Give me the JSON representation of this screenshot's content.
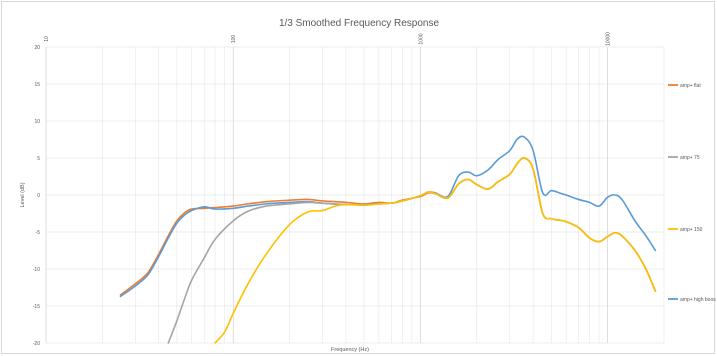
{
  "chart_data": {
    "type": "line",
    "title": "1/3 Smoothed Frequency Response",
    "xlabel": "Frequency (Hz)",
    "ylabel": "Level (dB)",
    "x_scale": "log",
    "xlim": [
      10,
      20000
    ],
    "ylim": [
      -20,
      20
    ],
    "x_ticks": [
      "10",
      "100",
      "1000",
      "10000"
    ],
    "y_ticks": [
      "20",
      "15",
      "10",
      "5",
      "0",
      "-5",
      "-10",
      "-15",
      "-20"
    ],
    "grid": true,
    "legend_position": "right",
    "series": [
      {
        "name": "amp+ flat",
        "color": "#ed7d31",
        "x": [
          25,
          30,
          35,
          40,
          45,
          50,
          55,
          60,
          70,
          80,
          100,
          120,
          150,
          200,
          250,
          300,
          400,
          500,
          600,
          700,
          800,
          1000,
          1100,
          1200,
          1400,
          1600,
          1800,
          2000,
          2300,
          2600,
          3000,
          3300,
          3600,
          4000,
          4500,
          5000,
          5500,
          6000,
          7000,
          8000,
          9000,
          10000,
          11000,
          12000,
          14000,
          16000,
          18000
        ],
        "y": [
          -13.5,
          -12,
          -10.5,
          -8,
          -5.5,
          -3.5,
          -2.4,
          -1.9,
          -1.8,
          -1.7,
          -1.5,
          -1.2,
          -0.9,
          -0.7,
          -0.6,
          -0.8,
          -1.0,
          -1.2,
          -1.0,
          -1.1,
          -0.7,
          -0.2,
          0.3,
          0.2,
          -0.4,
          1.5,
          2.1,
          1.4,
          0.8,
          1.8,
          2.8,
          4.3,
          5.0,
          3.5,
          -2.5,
          -3.2,
          -3.4,
          -3.6,
          -4.4,
          -5.8,
          -6.3,
          -5.6,
          -5.1,
          -5.6,
          -7.5,
          -10,
          -13
        ]
      },
      {
        "name": "amp+ 75",
        "color": "#a5a5a5",
        "x": [
          45,
          50,
          55,
          60,
          70,
          80,
          100,
          120,
          150,
          200,
          250,
          300,
          400,
          500,
          600,
          700,
          800,
          1000,
          1100,
          1200,
          1400,
          1600,
          1800,
          2000,
          2300,
          2600,
          3000,
          3300,
          3600,
          4000,
          4500,
          5000,
          5500,
          6000,
          7000,
          8000,
          9000,
          10000,
          11000,
          12000,
          14000,
          16000,
          18000
        ],
        "y": [
          -20,
          -17,
          -14,
          -11.5,
          -8.5,
          -6,
          -3.5,
          -2.2,
          -1.5,
          -1.2,
          -1.0,
          -1.1,
          -1.3,
          -1.3,
          -1.2,
          -1.1,
          -0.8,
          -0.1,
          0.4,
          0.2,
          -0.4,
          1.5,
          2.1,
          1.4,
          0.8,
          1.8,
          2.8,
          4.3,
          5.0,
          3.5,
          -2.5,
          -3.2,
          -3.4,
          -3.6,
          -4.4,
          -5.8,
          -6.3,
          -5.6,
          -5.1,
          -5.6,
          -7.5,
          -10,
          -13
        ]
      },
      {
        "name": "amp+ 150",
        "color": "#ffc000",
        "x": [
          80,
          90,
          100,
          120,
          150,
          200,
          250,
          300,
          350,
          400,
          500,
          600,
          700,
          800,
          1000,
          1100,
          1200,
          1400,
          1600,
          1800,
          2000,
          2300,
          2600,
          3000,
          3300,
          3600,
          4000,
          4500,
          5000,
          5500,
          6000,
          7000,
          8000,
          9000,
          10000,
          11000,
          12000,
          14000,
          16000,
          18000
        ],
        "y": [
          -20,
          -18.5,
          -16,
          -12,
          -8,
          -4,
          -2.3,
          -2.1,
          -1.5,
          -1.3,
          -1.4,
          -1.2,
          -1.1,
          -0.8,
          -0.1,
          0.4,
          0.2,
          -0.4,
          1.5,
          2.1,
          1.4,
          0.8,
          1.8,
          2.8,
          4.3,
          5.0,
          3.5,
          -2.5,
          -3.2,
          -3.4,
          -3.6,
          -4.4,
          -5.8,
          -6.3,
          -5.6,
          -5.1,
          -5.6,
          -7.5,
          -10,
          -13
        ]
      },
      {
        "name": "amp+ high boost",
        "color": "#5b9bd5",
        "x": [
          25,
          30,
          35,
          40,
          45,
          50,
          55,
          60,
          70,
          80,
          100,
          120,
          150,
          200,
          250,
          300,
          400,
          500,
          600,
          700,
          800,
          1000,
          1100,
          1200,
          1400,
          1600,
          1800,
          2000,
          2300,
          2600,
          3000,
          3300,
          3600,
          4000,
          4500,
          5000,
          5500,
          6000,
          7000,
          8000,
          9000,
          10000,
          11000,
          12000,
          14000,
          16000,
          18000
        ],
        "y": [
          -13.7,
          -12.3,
          -10.8,
          -8.3,
          -5.8,
          -3.8,
          -2.7,
          -2.1,
          -1.6,
          -1.9,
          -1.8,
          -1.5,
          -1.2,
          -1.0,
          -0.9,
          -1.1,
          -1.3,
          -1.3,
          -1.2,
          -1.1,
          -0.8,
          -0.1,
          0.4,
          0.3,
          -0.2,
          2.6,
          3.1,
          2.6,
          3.4,
          4.8,
          6.0,
          7.6,
          7.8,
          6.0,
          0.3,
          0.6,
          0.3,
          0.0,
          -0.6,
          -1.0,
          -1.5,
          -0.3,
          0.0,
          -0.7,
          -3.5,
          -5.5,
          -7.5
        ]
      }
    ]
  }
}
